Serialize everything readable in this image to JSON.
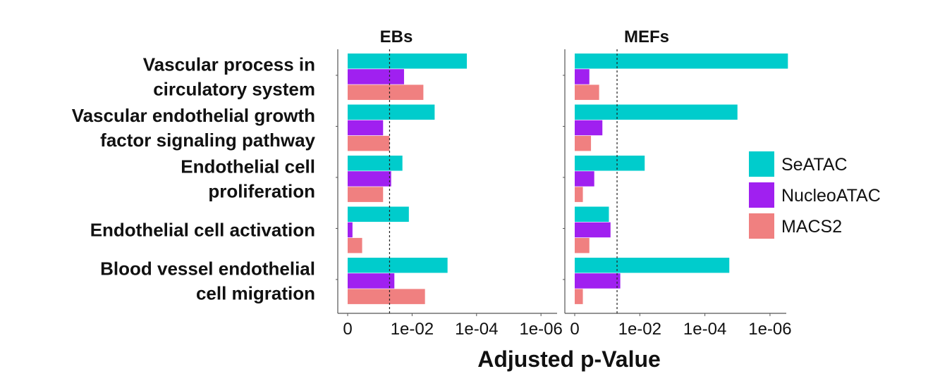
{
  "chart_data": {
    "type": "bar",
    "orientation": "horizontal",
    "xlabel": "Adjusted p-Value",
    "x_scale": "-log10",
    "x_ticks": [
      "0",
      "1e-02",
      "1e-04",
      "1e-06"
    ],
    "x_tick_values": [
      0,
      2,
      4,
      6
    ],
    "xlim": [
      0,
      6.5
    ],
    "threshold_pvalue": 0.05,
    "categories": [
      "Vascular process in\ncirculatory system",
      "Vascular endothelial growth\nfactor signaling pathway",
      "Endothelial cell\nproliferation",
      "Endothelial cell activation",
      "Blood vessel endothelial\ncell migration"
    ],
    "legend": {
      "placement": "right",
      "entries": [
        {
          "name": "SeATAC",
          "color": "#00CCCC"
        },
        {
          "name": "NucleoATAC",
          "color": "#A020F0"
        },
        {
          "name": "MACS2",
          "color": "#F08080"
        }
      ]
    },
    "panels": [
      {
        "title": "EBs",
        "series": [
          {
            "name": "SeATAC",
            "color": "#00CCCC",
            "values": [
              3.7,
              2.7,
              1.7,
              1.9,
              3.1
            ]
          },
          {
            "name": "NucleoATAC",
            "color": "#A020F0",
            "values": [
              1.75,
              1.1,
              1.35,
              0.15,
              1.45
            ]
          },
          {
            "name": "MACS2",
            "color": "#F08080",
            "values": [
              2.35,
              1.3,
              1.1,
              0.45,
              2.4
            ]
          }
        ]
      },
      {
        "title": "MEFs",
        "series": [
          {
            "name": "SeATAC",
            "color": "#00CCCC",
            "values": [
              6.55,
              5.0,
              2.15,
              1.05,
              4.75
            ]
          },
          {
            "name": "NucleoATAC",
            "color": "#A020F0",
            "values": [
              0.45,
              0.85,
              0.6,
              1.1,
              1.4
            ]
          },
          {
            "name": "MACS2",
            "color": "#F08080",
            "values": [
              0.75,
              0.5,
              0.25,
              0.45,
              0.25
            ]
          }
        ]
      }
    ]
  }
}
